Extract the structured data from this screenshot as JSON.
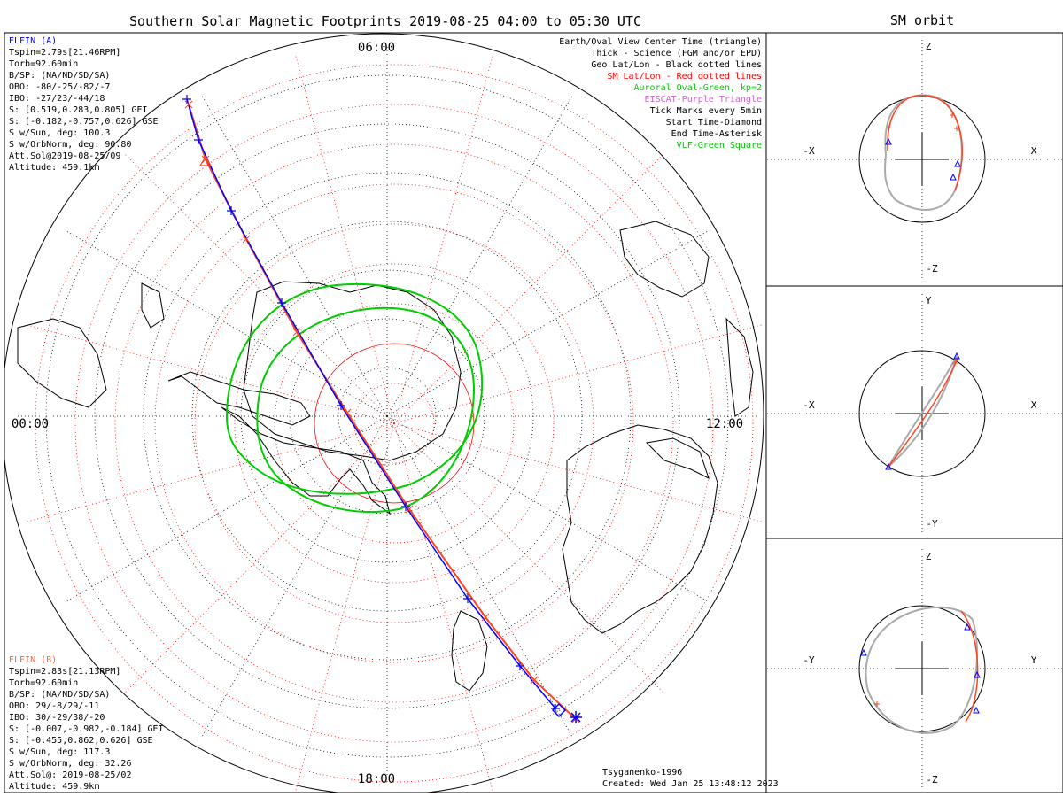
{
  "title": "Southern Solar Magnetic Footprints 2019-08-25 04:00 to 05:30 UTC",
  "right_title": "SM orbit",
  "mlt_labels": {
    "top": "06:00",
    "left": "00:00",
    "right": "12:00",
    "bottom": "18:00"
  },
  "legend": [
    {
      "text": "Earth/Oval View Center Time (triangle)",
      "color": "#000000"
    },
    {
      "text": "Thick - Science (FGM and/or EPD)",
      "color": "#000000"
    },
    {
      "text": "Geo Lat/Lon - Black dotted lines",
      "color": "#000000"
    },
    {
      "text": "SM Lat/Lon - Red dotted lines",
      "color": "#ff0000"
    },
    {
      "text": "Auroral Oval-Green, kp=2",
      "color": "#00cc00"
    },
    {
      "text": "EISCAT-Purple Triangle",
      "color": "#cc66cc"
    },
    {
      "text": "Tick Marks every 5min",
      "color": "#000000"
    },
    {
      "text": "Start Time-Diamond",
      "color": "#000000"
    },
    {
      "text": "End Time-Asterisk",
      "color": "#000000"
    },
    {
      "text": "VLF-Green Square",
      "color": "#00cc00"
    }
  ],
  "probe_a": {
    "name": "ELFIN (A)",
    "color": "#0000ff",
    "lines": [
      "Tspin=2.79s[21.46RPM]",
      "Torb=92.60min",
      "B/SP: (NA/ND/SD/SA)",
      "OBO: -80/-25/-82/-7",
      "IBO: -27/23/-44/18",
      "S: [0.519,0.283,0.805] GEI",
      "S: [-0.182,-0.757,0.626] GSE",
      "S w/Sun, deg: 100.3",
      "S w/OrbNorm, deg: 90.80",
      "Att.Sol@2019-08-25/09",
      "Altitude: 459.1km"
    ]
  },
  "probe_b": {
    "name": "ELFIN (B)",
    "color": "#ff6633",
    "lines": [
      "Tspin=2.83s[21.13RPM]",
      "Torb=92.60min",
      "B/SP: (NA/ND/SD/SA)",
      "OBO: 29/-8/29/-11",
      "IBO: 30/-29/38/-20",
      "S: [-0.007,-0.982,-0.184] GEI",
      "S: [-0.455,0.862,0.626] GSE",
      "S w/Sun, deg: 117.3",
      "S w/OrbNorm, deg: 32.26",
      "Att.Sol@: 2019-08-25/02",
      "Altitude: 459.9km"
    ]
  },
  "credits": {
    "model": "Tsyganenko-1996",
    "created": "Created: Wed Jan 25 13:48:12 2023"
  },
  "orbit_panels": [
    {
      "left": "-X",
      "right": "X",
      "top": "Z",
      "bottom": "-Z"
    },
    {
      "left": "-X",
      "right": "X",
      "top": "Y",
      "bottom": "-Y"
    },
    {
      "left": "-Y",
      "right": "Y",
      "top": "Z",
      "bottom": "-Z"
    }
  ],
  "colors": {
    "probe_a": "#0000ff",
    "probe_b": "#ff4422",
    "oval": "#00cc00",
    "sm_grid": "#ff0000",
    "orbit_gray": "#aaaaaa"
  },
  "chart_data": [
    {
      "type": "polar-map",
      "title": "Southern Solar Magnetic Footprints 2019-08-25 04:00 to 05:30 UTC",
      "center_label": "south magnetic pole (center)",
      "mlt_ticks": [
        "00:00",
        "06:00",
        "12:00",
        "18:00"
      ],
      "series": [
        {
          "name": "ELFIN (A)",
          "color": "#0000ff",
          "track": "footprint from 06:00 sector edge through pole to 18:00 sector edge"
        },
        {
          "name": "ELFIN (B)",
          "color": "#ff4422",
          "track": "footprint nearly coincident with ELFIN (A)"
        }
      ],
      "auroral_oval_kp": 2
    },
    {
      "type": "orbit",
      "title": "SM orbit",
      "panels": [
        [
          "X",
          "Z"
        ],
        [
          "X",
          "Y"
        ],
        [
          "Y",
          "Z"
        ]
      ]
    }
  ]
}
